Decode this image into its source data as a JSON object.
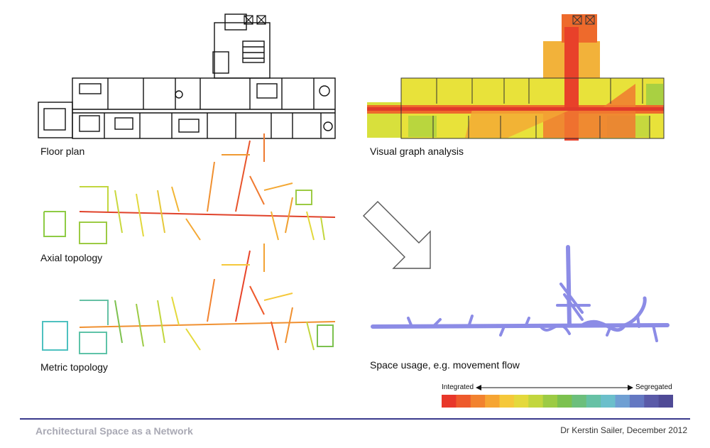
{
  "captions": {
    "floor_plan": "Floor plan",
    "visual_graph": "Visual graph analysis",
    "axial": "Axial topology",
    "metric": "Metric topology",
    "space_usage": "Space usage, e.g. movement flow"
  },
  "legend": {
    "integrated": "Integrated",
    "segregated": "Segregated",
    "colors": [
      "#e8372a",
      "#ee5a2c",
      "#f2822f",
      "#f6a533",
      "#f5c83a",
      "#e4d93c",
      "#c2d63e",
      "#9ccb44",
      "#7cc14f",
      "#6cbf7c",
      "#66c1a5",
      "#6bbfcb",
      "#6f9fd3",
      "#6478c2",
      "#5a5aa8",
      "#4f4a96"
    ]
  },
  "footer": {
    "title": "Architectural Space as a Network",
    "author": "Dr Kerstin Sailer, December 2012"
  }
}
